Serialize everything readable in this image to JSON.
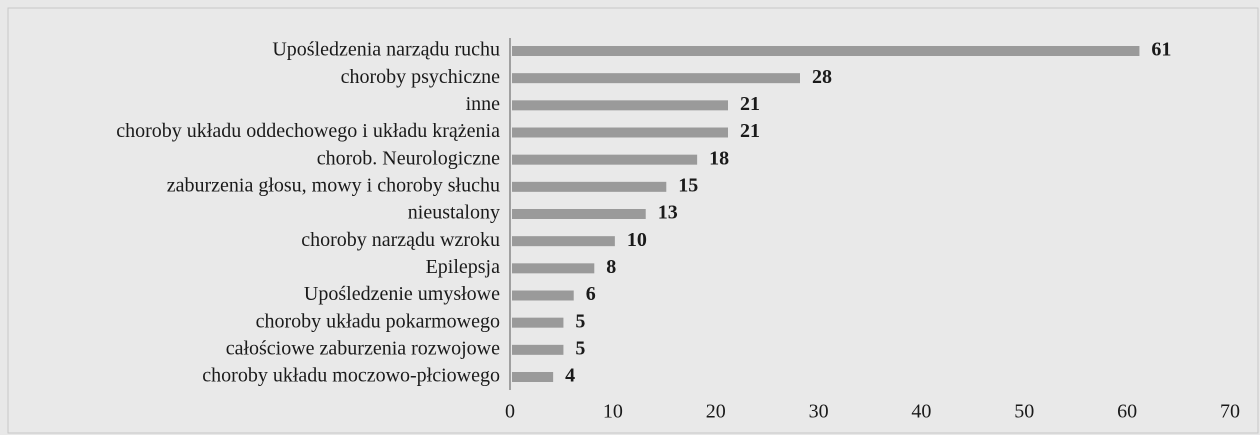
{
  "chart_data": {
    "type": "bar",
    "orientation": "horizontal",
    "categories": [
      "Upośledzenia narządu ruchu",
      "choroby psychiczne",
      "inne",
      "choroby układu oddechowego i układu krążenia",
      "chorob. Neurologiczne",
      "zaburzenia głosu, mowy i choroby słuchu",
      "nieustalony",
      "choroby narządu wzroku",
      "Epilepsja",
      "Upośledzenie umysłowe",
      "choroby układu pokarmowego",
      "całościowe zaburzenia rozwojowe",
      "choroby układu moczowo-płciowego"
    ],
    "values": [
      61,
      28,
      21,
      21,
      18,
      15,
      13,
      10,
      8,
      6,
      5,
      5,
      4
    ],
    "color": "#9a9a9a",
    "xlim": [
      0,
      70
    ],
    "xticks": [
      0,
      10,
      20,
      30,
      40,
      50,
      60,
      70
    ],
    "grid": false
  }
}
